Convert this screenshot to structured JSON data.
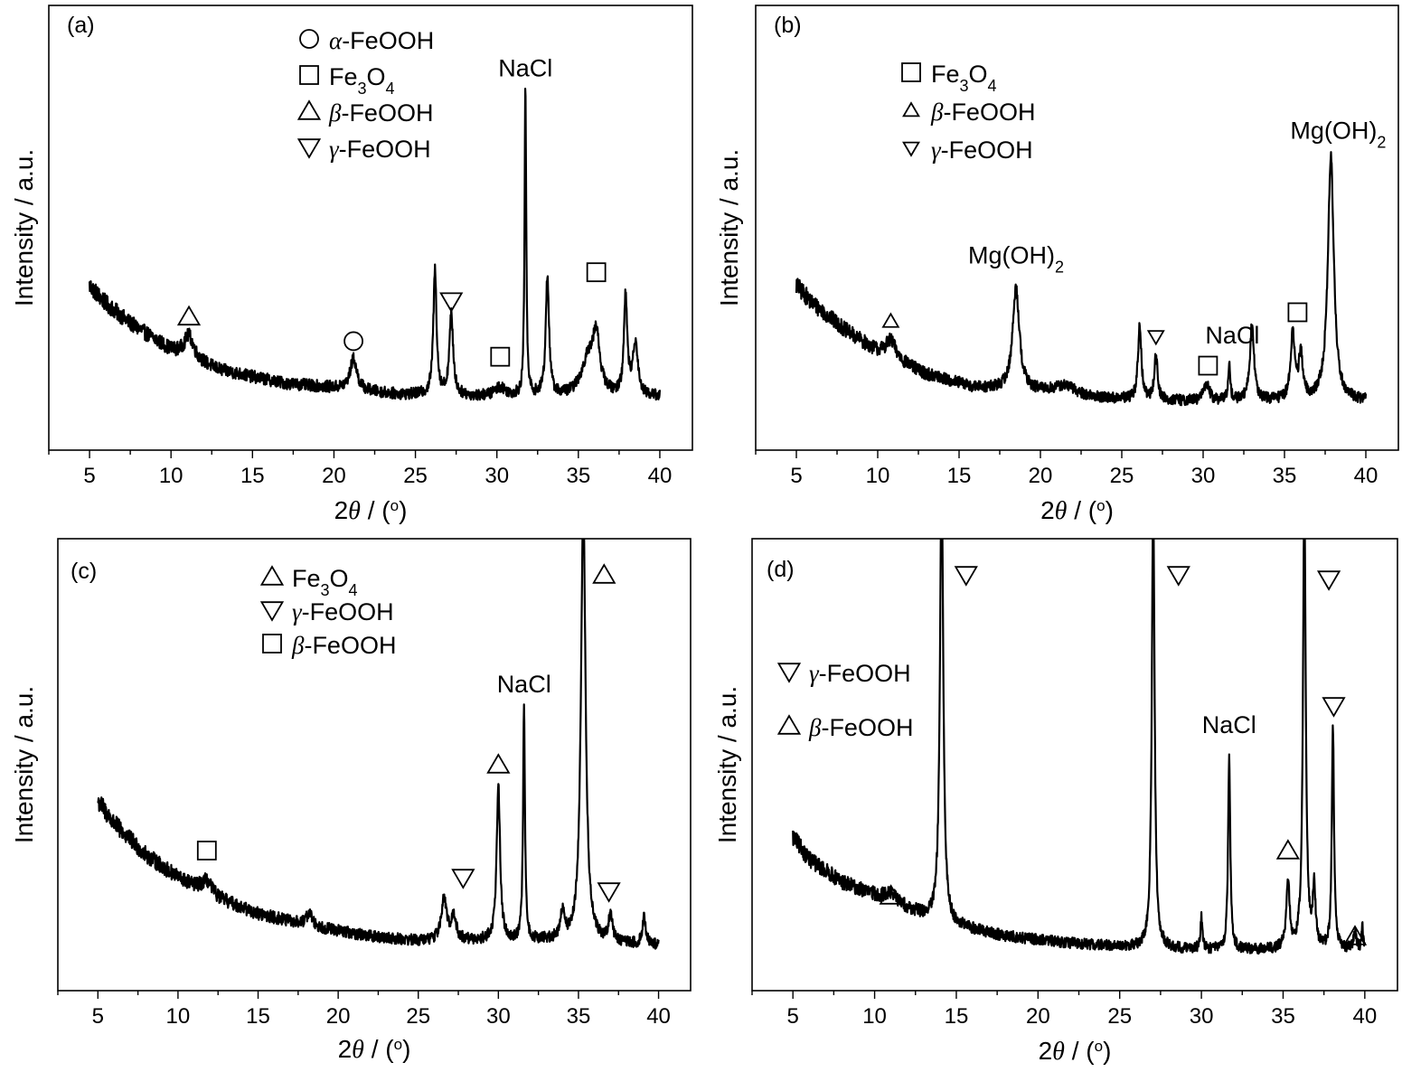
{
  "chart_data": [
    {
      "type": "line",
      "panel_label": "(a)",
      "xlabel_prefix": "2",
      "xlabel_symbol": "θ",
      "xlabel_suffix": " / (",
      "xlabel_unit": "o",
      "xlabel_close": ")",
      "ylabel": "Intensity / a.u.",
      "xlim": [
        2.5,
        42
      ],
      "ylim": [
        0,
        100
      ],
      "xticks": [
        5,
        10,
        15,
        20,
        25,
        30,
        35,
        40
      ],
      "baseline": [
        [
          5,
          37
        ],
        [
          6,
          33
        ],
        [
          7.5,
          28.5
        ],
        [
          10,
          22.5
        ],
        [
          13,
          18
        ],
        [
          17,
          15
        ],
        [
          20,
          14
        ],
        [
          24,
          12.5
        ],
        [
          29,
          12
        ],
        [
          34,
          12
        ],
        [
          40,
          12
        ]
      ],
      "peaks": [
        {
          "x": 11.1,
          "h": 5,
          "w": 0.35
        },
        {
          "x": 21.2,
          "h": 7,
          "w": 0.25
        },
        {
          "x": 26.2,
          "h": 28,
          "w": 0.12
        },
        {
          "x": 27.2,
          "h": 18,
          "w": 0.14
        },
        {
          "x": 30.2,
          "h": 2,
          "w": 0.4
        },
        {
          "x": 31.75,
          "h": 70,
          "w": 0.06
        },
        {
          "x": 33.1,
          "h": 27,
          "w": 0.12
        },
        {
          "x": 35.6,
          "h": 8,
          "w": 0.5
        },
        {
          "x": 36.1,
          "h": 12,
          "w": 0.25
        },
        {
          "x": 37.9,
          "h": 22,
          "w": 0.12
        },
        {
          "x": 38.5,
          "h": 12,
          "w": 0.18
        }
      ],
      "legend": [
        {
          "marker": "circle",
          "prefix": "",
          "greek": "α",
          "label": "-FeOOH",
          "sub": ""
        },
        {
          "marker": "square",
          "prefix": "Fe",
          "greek": "",
          "label": "",
          "sub": "3",
          "tail": "O",
          "sub2": "4"
        },
        {
          "marker": "triangle-up",
          "prefix": "",
          "greek": "β",
          "label": "-FeOOH",
          "sub": ""
        },
        {
          "marker": "triangle-down",
          "prefix": "",
          "greek": "γ",
          "label": "-FeOOH",
          "sub": ""
        }
      ],
      "annotations": [
        {
          "text": "NaCl",
          "sub": "",
          "x": 31.75,
          "y": 84
        },
        {
          "marker": "triangle-up",
          "x": 11.1,
          "y": 30
        },
        {
          "marker": "circle",
          "x": 21.2,
          "y": 24.5
        },
        {
          "marker": "triangle-down",
          "x": 27.2,
          "y": 33.5
        },
        {
          "marker": "square",
          "x": 30.2,
          "y": 21
        },
        {
          "marker": "square",
          "x": 36.1,
          "y": 40
        }
      ]
    },
    {
      "type": "line",
      "panel_label": "(b)",
      "xlabel_prefix": "2",
      "xlabel_symbol": "θ",
      "xlabel_suffix": " / (",
      "xlabel_unit": "o",
      "xlabel_close": ")",
      "ylabel": "Intensity / a.u.",
      "xlim": [
        2.5,
        42
      ],
      "ylim": [
        0,
        100
      ],
      "xticks": [
        5,
        10,
        15,
        20,
        25,
        30,
        35,
        40
      ],
      "baseline": [
        [
          5,
          37
        ],
        [
          6,
          33
        ],
        [
          8,
          27
        ],
        [
          10,
          22
        ],
        [
          13,
          17
        ],
        [
          16,
          14
        ],
        [
          20,
          13
        ],
        [
          24,
          11.5
        ],
        [
          29,
          11
        ],
        [
          34,
          11
        ],
        [
          40,
          11
        ]
      ],
      "peaks": [
        {
          "x": 10.8,
          "h": 4,
          "w": 0.4
        },
        {
          "x": 18.5,
          "h": 23,
          "w": 0.25
        },
        {
          "x": 21.5,
          "h": 2,
          "w": 0.8
        },
        {
          "x": 26.1,
          "h": 17,
          "w": 0.12
        },
        {
          "x": 27.1,
          "h": 10,
          "w": 0.12
        },
        {
          "x": 30.2,
          "h": 4,
          "w": 0.2
        },
        {
          "x": 31.6,
          "h": 8,
          "w": 0.08
        },
        {
          "x": 33.0,
          "h": 17,
          "w": 0.15
        },
        {
          "x": 35.5,
          "h": 15,
          "w": 0.15
        },
        {
          "x": 36.0,
          "h": 10,
          "w": 0.15
        },
        {
          "x": 37.85,
          "h": 55,
          "w": 0.22
        }
      ],
      "legend": [
        {
          "marker": "square",
          "prefix": "Fe",
          "greek": "",
          "label": "",
          "sub": "3",
          "tail": "O",
          "sub2": "4"
        },
        {
          "marker": "triangle-up",
          "prefix": "",
          "greek": "β",
          "label": "-FeOOH",
          "sub": "",
          "small": true
        },
        {
          "marker": "triangle-down",
          "prefix": "",
          "greek": "γ",
          "label": "-FeOOH",
          "sub": "",
          "small": true
        }
      ],
      "annotations": [
        {
          "text": "Mg(OH)",
          "sub": "2",
          "x": 18.5,
          "y": 42
        },
        {
          "text": "Mg(OH)",
          "sub": "2",
          "x": 38.3,
          "y": 70
        },
        {
          "text": "NaCl",
          "sub": "",
          "x": 31.8,
          "y": 24
        },
        {
          "marker": "triangle-up",
          "x": 10.8,
          "y": 29,
          "small": true
        },
        {
          "marker": "triangle-down",
          "x": 27.1,
          "y": 25.5,
          "small": true
        },
        {
          "marker": "square",
          "x": 30.3,
          "y": 19
        },
        {
          "marker": "square",
          "x": 35.8,
          "y": 31
        }
      ]
    },
    {
      "type": "line",
      "panel_label": "(c)",
      "xlabel_prefix": "2",
      "xlabel_symbol": "θ",
      "xlabel_suffix": " / (",
      "xlabel_unit": "o",
      "xlabel_close": ")",
      "ylabel": "Intensity / a.u.",
      "xlim": [
        2.5,
        42
      ],
      "ylim": [
        0,
        100
      ],
      "xticks": [
        5,
        10,
        15,
        20,
        25,
        30,
        35,
        40
      ],
      "baseline": [
        [
          5,
          42
        ],
        [
          6,
          37
        ],
        [
          8,
          30
        ],
        [
          10,
          25
        ],
        [
          12,
          21
        ],
        [
          15,
          17
        ],
        [
          18,
          14.5
        ],
        [
          22,
          12
        ],
        [
          25,
          11
        ],
        [
          29,
          11
        ],
        [
          33,
          11
        ],
        [
          40,
          10
        ]
      ],
      "peaks": [
        {
          "x": 11.8,
          "h": 3,
          "w": 0.4
        },
        {
          "x": 18.2,
          "h": 3,
          "w": 0.2
        },
        {
          "x": 26.6,
          "h": 9,
          "w": 0.2
        },
        {
          "x": 27.2,
          "h": 5,
          "w": 0.2
        },
        {
          "x": 30.0,
          "h": 34,
          "w": 0.13
        },
        {
          "x": 31.6,
          "h": 51,
          "w": 0.07
        },
        {
          "x": 34.0,
          "h": 6,
          "w": 0.15
        },
        {
          "x": 35.3,
          "h": 98,
          "w": 0.17
        },
        {
          "x": 37.0,
          "h": 6,
          "w": 0.15
        },
        {
          "x": 39.1,
          "h": 6,
          "w": 0.12
        }
      ],
      "legend": [
        {
          "marker": "triangle-up",
          "prefix": "Fe",
          "greek": "",
          "label": "",
          "sub": "3",
          "tail": "O",
          "sub2": "4"
        },
        {
          "marker": "triangle-down",
          "prefix": "",
          "greek": "γ",
          "label": "-FeOOH",
          "sub": ""
        },
        {
          "marker": "square",
          "prefix": "",
          "greek": "β",
          "label": "-FeOOH",
          "sub": ""
        }
      ],
      "annotations": [
        {
          "text": "NaCl",
          "sub": "",
          "x": 31.6,
          "y": 66
        },
        {
          "marker": "triangle-up",
          "x": 30.0,
          "y": 50
        },
        {
          "marker": "triangle-up",
          "x": 36.6,
          "y": 92
        },
        {
          "marker": "square",
          "x": 11.8,
          "y": 31
        },
        {
          "marker": "triangle-down",
          "x": 27.8,
          "y": 25
        },
        {
          "marker": "triangle-down",
          "x": 36.9,
          "y": 22
        }
      ]
    },
    {
      "type": "line",
      "panel_label": "(d)",
      "xlabel_prefix": "2",
      "xlabel_symbol": "θ",
      "xlabel_suffix": " / (",
      "xlabel_unit": "o",
      "xlabel_close": ")",
      "ylabel": "Intensity / a.u.",
      "xlim": [
        2.5,
        42
      ],
      "ylim": [
        0,
        100
      ],
      "xticks": [
        5,
        10,
        15,
        20,
        25,
        30,
        35,
        40
      ],
      "baseline": [
        [
          5,
          34
        ],
        [
          6,
          29
        ],
        [
          8,
          24
        ],
        [
          10,
          21
        ],
        [
          12,
          18
        ],
        [
          14,
          15
        ],
        [
          18,
          12
        ],
        [
          22,
          10.5
        ],
        [
          26,
          9.5
        ],
        [
          30,
          9
        ],
        [
          35,
          9
        ],
        [
          40,
          9
        ]
      ],
      "peaks": [
        {
          "x": 11.0,
          "h": 2,
          "w": 0.5
        },
        {
          "x": 14.1,
          "h": 100,
          "w": 0.12
        },
        {
          "x": 27.05,
          "h": 100,
          "w": 0.1
        },
        {
          "x": 30.0,
          "h": 7,
          "w": 0.08
        },
        {
          "x": 31.7,
          "h": 42,
          "w": 0.08
        },
        {
          "x": 35.3,
          "h": 15,
          "w": 0.12
        },
        {
          "x": 36.3,
          "h": 100,
          "w": 0.1
        },
        {
          "x": 36.9,
          "h": 13,
          "w": 0.1
        },
        {
          "x": 38.05,
          "h": 49,
          "w": 0.08
        },
        {
          "x": 39.4,
          "h": 4,
          "w": 0.1
        },
        {
          "x": 39.85,
          "h": 5,
          "w": 0.05
        }
      ],
      "legend": [
        {
          "marker": "triangle-down",
          "prefix": "",
          "greek": "γ",
          "label": "-FeOOH",
          "sub": ""
        },
        {
          "marker": "triangle-up",
          "prefix": "",
          "greek": "β",
          "label": "-FeOOH",
          "sub": ""
        }
      ],
      "annotations": [
        {
          "text": "NaCl",
          "sub": "",
          "x": 31.7,
          "y": 57
        },
        {
          "marker": "triangle-down",
          "x": 15.6,
          "y": 92
        },
        {
          "marker": "triangle-down",
          "x": 28.6,
          "y": 92
        },
        {
          "marker": "triangle-down",
          "x": 37.8,
          "y": 91
        },
        {
          "marker": "triangle-down",
          "x": 38.1,
          "y": 63
        },
        {
          "marker": "triangle-up",
          "x": 11.0,
          "y": 21
        },
        {
          "marker": "triangle-up",
          "x": 35.3,
          "y": 31
        },
        {
          "marker": "triangle-up",
          "x": 39.4,
          "y": 12
        }
      ]
    }
  ]
}
